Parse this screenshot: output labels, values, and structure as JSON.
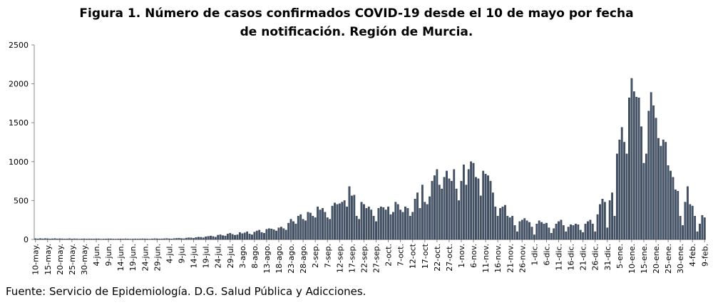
{
  "chart_data": {
    "type": "bar",
    "title": "Figura 1. Número de casos confirmados COVID-19 desde el 10 de mayo por fecha de notificación. Región de Murcia.",
    "source": "Fuente: Servicio de Epidemiología. D.G. Salud Pública y Adicciones.",
    "color": "#44546a",
    "grid": false,
    "ylim": [
      0,
      2500
    ],
    "yticks": [
      0,
      500,
      1000,
      1500,
      2000,
      2500
    ],
    "categories": [
      "10-may.",
      null,
      null,
      null,
      null,
      "15-may.",
      null,
      null,
      null,
      null,
      "20-may.",
      null,
      null,
      null,
      null,
      "25-may.",
      null,
      null,
      null,
      null,
      "30-may.",
      null,
      null,
      null,
      null,
      "4-jun.",
      null,
      null,
      null,
      null,
      "9-jun.",
      null,
      null,
      null,
      null,
      "14-jun.",
      null,
      null,
      null,
      null,
      "19-jun.",
      null,
      null,
      null,
      null,
      "24-jun.",
      null,
      null,
      null,
      null,
      "29-jun.",
      null,
      null,
      null,
      null,
      "4-jul.",
      null,
      null,
      null,
      null,
      "9-jul.",
      null,
      null,
      null,
      null,
      "14-jul.",
      null,
      null,
      null,
      null,
      "19-jul.",
      null,
      null,
      null,
      null,
      "24-jul.",
      null,
      null,
      null,
      null,
      "29-jul.",
      null,
      null,
      null,
      null,
      "3-ago.",
      null,
      null,
      null,
      null,
      "8-ago.",
      null,
      null,
      null,
      null,
      "13-ago.",
      null,
      null,
      null,
      null,
      "18-ago.",
      null,
      null,
      null,
      null,
      "23-ago.",
      null,
      null,
      null,
      null,
      "28-ago.",
      null,
      null,
      null,
      null,
      "2-sep.",
      null,
      null,
      null,
      null,
      "7-sep.",
      null,
      null,
      null,
      null,
      "12-sep.",
      null,
      null,
      null,
      null,
      "17-sep.",
      null,
      null,
      null,
      null,
      "22-sep.",
      null,
      null,
      null,
      null,
      "27-sep.",
      null,
      null,
      null,
      null,
      "2-oct.",
      null,
      null,
      null,
      null,
      "7-oct.",
      null,
      null,
      null,
      null,
      "12-oct",
      null,
      null,
      null,
      null,
      "17-oct",
      null,
      null,
      null,
      null,
      "22-oct.",
      null,
      null,
      null,
      null,
      "27-oct.",
      null,
      null,
      null,
      null,
      "1-nov.",
      null,
      null,
      null,
      null,
      "6-nov.",
      null,
      null,
      null,
      null,
      "11-nov.",
      null,
      null,
      null,
      null,
      "16-nov.",
      null,
      null,
      null,
      null,
      "21-nov.",
      null,
      null,
      null,
      null,
      "26-nov.",
      null,
      null,
      null,
      null,
      "1-dic.",
      null,
      null,
      null,
      null,
      "6-dic.",
      null,
      null,
      null,
      null,
      "11-dic.",
      null,
      null,
      null,
      null,
      "16-dic.",
      null,
      null,
      null,
      null,
      "21-dic.",
      null,
      null,
      null,
      null,
      "26-dic.",
      null,
      null,
      null,
      null,
      "31-dic.",
      null,
      null,
      null,
      null,
      "5-ene.",
      null,
      null,
      null,
      null,
      "10-ene.",
      null,
      null,
      null,
      null,
      "15-ene.",
      null,
      null,
      null,
      null,
      "20-ene.",
      null,
      null,
      null,
      null,
      "25-ene.",
      null,
      null,
      null,
      null,
      "30-ene.",
      null,
      null,
      null,
      null,
      "4-feb.",
      null,
      null,
      null,
      null,
      "9-feb."
    ],
    "values": [
      10,
      8,
      12,
      9,
      11,
      10,
      7,
      9,
      12,
      8,
      10,
      9,
      6,
      8,
      10,
      7,
      9,
      8,
      5,
      7,
      9,
      6,
      8,
      7,
      6,
      9,
      8,
      5,
      6,
      7,
      9,
      8,
      6,
      5,
      7,
      8,
      6,
      9,
      7,
      5,
      6,
      8,
      7,
      6,
      9,
      8,
      7,
      5,
      8,
      10,
      9,
      7,
      8,
      10,
      12,
      9,
      7,
      11,
      14,
      16,
      12,
      10,
      18,
      22,
      20,
      15,
      25,
      30,
      28,
      22,
      35,
      40,
      45,
      38,
      30,
      55,
      60,
      50,
      45,
      70,
      80,
      65,
      55,
      60,
      90,
      75,
      85,
      100,
      70,
      60,
      95,
      110,
      120,
      90,
      80,
      130,
      140,
      135,
      125,
      110,
      150,
      160,
      140,
      120,
      210,
      260,
      230,
      200,
      300,
      320,
      260,
      240,
      350,
      340,
      300,
      280,
      420,
      380,
      400,
      350,
      280,
      260,
      430,
      470,
      450,
      460,
      480,
      500,
      420,
      680,
      560,
      570,
      300,
      260,
      480,
      450,
      400,
      420,
      380,
      300,
      230,
      400,
      420,
      410,
      380,
      420,
      320,
      350,
      480,
      450,
      380,
      350,
      420,
      400,
      300,
      350,
      520,
      600,
      400,
      700,
      480,
      450,
      550,
      750,
      820,
      900,
      700,
      650,
      800,
      880,
      780,
      750,
      900,
      650,
      500,
      750,
      960,
      700,
      900,
      1000,
      980,
      800,
      780,
      560,
      880,
      840,
      820,
      750,
      600,
      420,
      300,
      400,
      420,
      440,
      300,
      280,
      300,
      180,
      100,
      230,
      250,
      270,
      240,
      220,
      160,
      60,
      200,
      240,
      220,
      200,
      210,
      150,
      80,
      140,
      200,
      230,
      250,
      180,
      100,
      160,
      190,
      180,
      200,
      190,
      120,
      90,
      200,
      230,
      250,
      200,
      100,
      320,
      450,
      520,
      480,
      150,
      500,
      600,
      300,
      1100,
      1280,
      1440,
      1250,
      1100,
      1820,
      2070,
      1900,
      1830,
      1820,
      1450,
      980,
      1100,
      1650,
      1890,
      1720,
      1560,
      1300,
      1200,
      1280,
      1250,
      950,
      880,
      800,
      640,
      620,
      300,
      180,
      480,
      680,
      450,
      430,
      300,
      100,
      200,
      310,
      280
    ]
  }
}
